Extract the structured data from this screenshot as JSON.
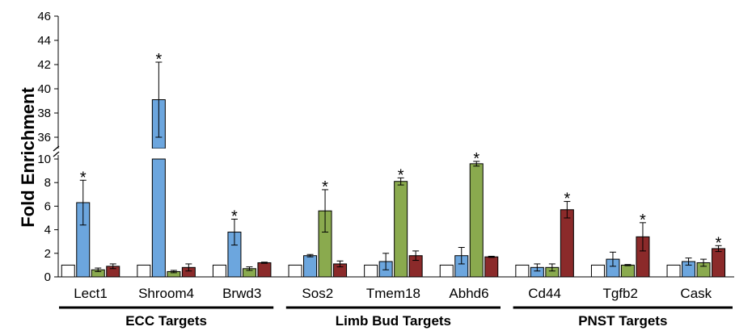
{
  "chart_data": {
    "type": "bar",
    "ylabel": "Fold Enrichment",
    "y_axis": {
      "lower_range": [
        0,
        10
      ],
      "upper_range": [
        35,
        46
      ],
      "axis_break": "between 10 and 35",
      "lower_ticks": [
        "0",
        "2",
        "4",
        "6",
        "8",
        "10"
      ],
      "upper_ticks": [
        "36",
        "38",
        "40",
        "42",
        "44",
        "46"
      ]
    },
    "categories": [
      "Lect1",
      "Shroom4",
      "Brwd3",
      "Sos2",
      "Tmem18",
      "Abhd6",
      "Cd44",
      "Tgfb2",
      "Cask"
    ],
    "groups": [
      {
        "label": "ECC Targets",
        "categories": [
          "Lect1",
          "Shroom4",
          "Brwd3"
        ]
      },
      {
        "label": "Limb Bud Targets",
        "categories": [
          "Sos2",
          "Tmem18",
          "Abhd6"
        ]
      },
      {
        "label": "PNST Targets",
        "categories": [
          "Cd44",
          "Tgfb2",
          "Cask"
        ]
      }
    ],
    "series": [
      {
        "color": "#ffffff",
        "values": [
          1,
          1,
          1,
          1,
          1,
          1,
          1,
          1,
          1
        ],
        "errors": [
          0,
          0,
          0,
          0,
          0,
          0,
          0,
          0,
          0
        ]
      },
      {
        "color": "#6ca6de",
        "values": [
          6.3,
          39.1,
          3.8,
          1.8,
          1.3,
          1.8,
          0.8,
          1.5,
          1.3
        ],
        "errors": [
          1.9,
          3.1,
          1.1,
          0.1,
          0.7,
          0.7,
          0.3,
          0.6,
          0.3
        ]
      },
      {
        "color": "#8aaa4e",
        "values": [
          0.6,
          0.45,
          0.7,
          5.6,
          8.1,
          9.6,
          0.8,
          1.0,
          1.2
        ],
        "errors": [
          0.15,
          0.1,
          0.15,
          1.8,
          0.3,
          0.2,
          0.3,
          0.05,
          0.3
        ]
      },
      {
        "color": "#8b2a2a",
        "values": [
          0.9,
          0.8,
          1.2,
          1.1,
          1.8,
          1.7,
          5.7,
          3.4,
          2.4
        ],
        "errors": [
          0.2,
          0.3,
          0.05,
          0.25,
          0.4,
          0.05,
          0.7,
          1.2,
          0.25
        ]
      }
    ],
    "annotations": [
      {
        "category": "Lect1",
        "series_index": 1,
        "text": "*"
      },
      {
        "category": "Shroom4",
        "series_index": 1,
        "text": "*"
      },
      {
        "category": "Brwd3",
        "series_index": 1,
        "text": "*"
      },
      {
        "category": "Sos2",
        "series_index": 2,
        "text": "*"
      },
      {
        "category": "Tmem18",
        "series_index": 2,
        "text": "*"
      },
      {
        "category": "Abhd6",
        "series_index": 2,
        "text": "*"
      },
      {
        "category": "Cd44",
        "series_index": 3,
        "text": "*"
      },
      {
        "category": "Tgfb2",
        "series_index": 3,
        "text": "*"
      },
      {
        "category": "Cask",
        "series_index": 3,
        "text": "*"
      }
    ],
    "axis_break_marker": "//",
    "legend": "none",
    "grid": false
  }
}
